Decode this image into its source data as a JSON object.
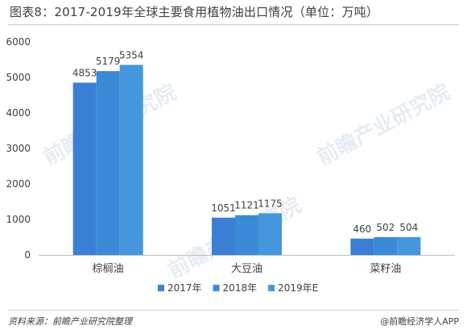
{
  "header": {
    "title": "图表8：2017-2019年全球主要食用植物油出口情况（单位：万吨）"
  },
  "footer": {
    "source": "资料来源：前瞻产业研究院整理",
    "brand": "@前瞻经济学人APP"
  },
  "watermarks": [
    "前瞻产业研究院",
    "前瞻产业研究院",
    "前瞻产业研究院"
  ],
  "chart_data": {
    "type": "bar",
    "categories": [
      "棕榈油",
      "大豆油",
      "菜籽油"
    ],
    "series": [
      {
        "name": "2017年",
        "values": [
          4853,
          1051,
          460
        ],
        "color": "#3a7fd5"
      },
      {
        "name": "2018年",
        "values": [
          5179,
          1121,
          502
        ],
        "color": "#3b8ad8"
      },
      {
        "name": "2019年E",
        "values": [
          5354,
          1175,
          504
        ],
        "color": "#4596dd"
      }
    ],
    "ylim": [
      0,
      6000
    ],
    "yticks": [
      0,
      1000,
      2000,
      3000,
      4000,
      5000,
      6000
    ],
    "grid": false,
    "legend": "bottom-center",
    "data_labels": true
  }
}
